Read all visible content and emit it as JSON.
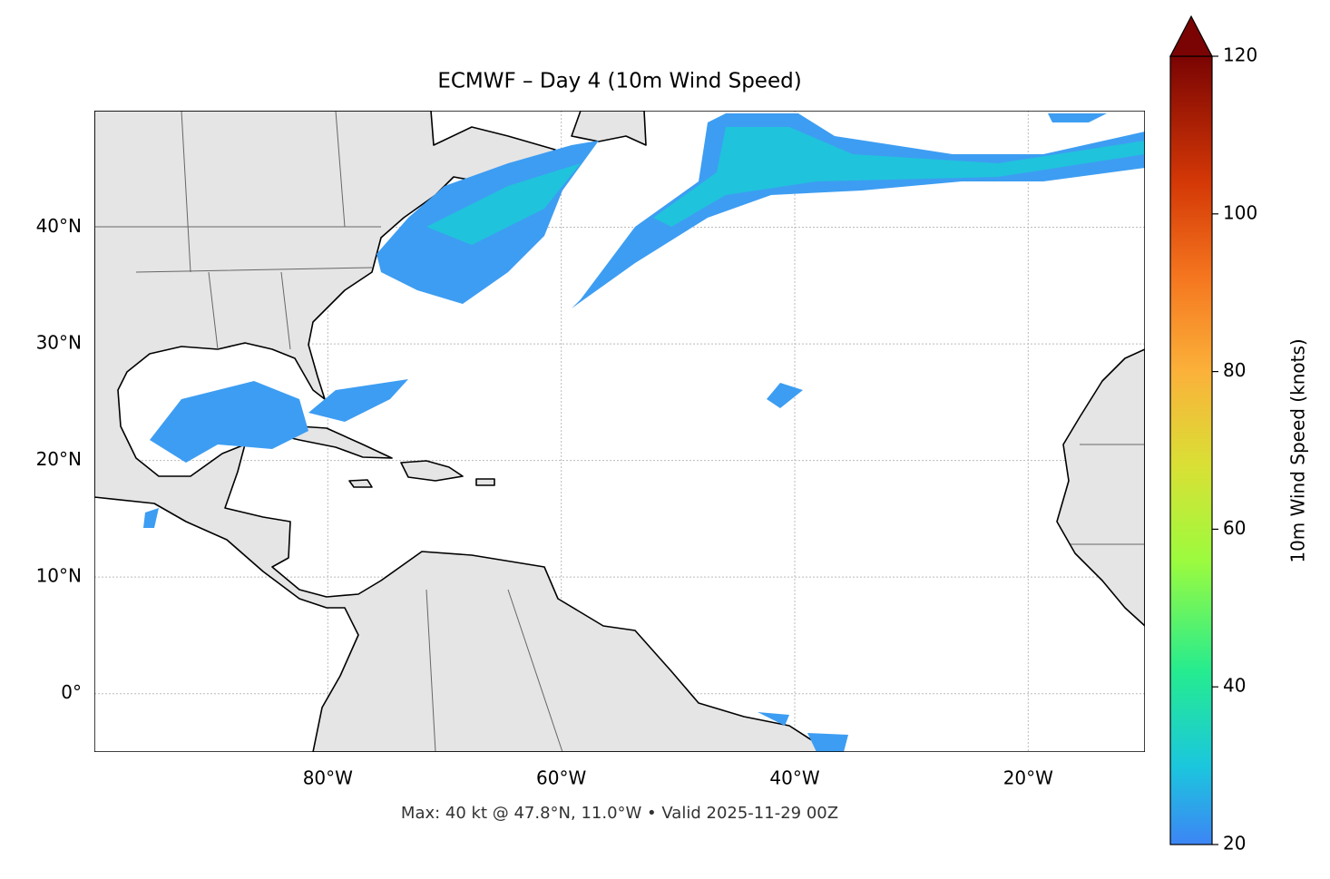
{
  "chart_data": {
    "type": "map",
    "title": "ECMWF – Day 4 (10m Wind Speed)",
    "footer": "Max: 40 kt @ 47.8°N, 11.0°W • Valid 2025-11-29 00Z",
    "xlim": [
      -100,
      -10
    ],
    "ylim": [
      -5,
      50
    ],
    "xticks": [
      {
        "value": -80,
        "label": "80°W"
      },
      {
        "value": -60,
        "label": "60°W"
      },
      {
        "value": -40,
        "label": "40°W"
      },
      {
        "value": -20,
        "label": "20°W"
      }
    ],
    "yticks": [
      {
        "value": 0,
        "label": "0°"
      },
      {
        "value": 10,
        "label": "10°N"
      },
      {
        "value": 20,
        "label": "20°N"
      },
      {
        "value": 30,
        "label": "30°N"
      },
      {
        "value": 40,
        "label": "40°N"
      }
    ],
    "grid": true,
    "colorbar": {
      "label": "10m Wind Speed (knots)",
      "lim": [
        20,
        120
      ],
      "ticks": [
        20,
        40,
        60,
        80,
        100,
        120
      ],
      "extend": "max"
    }
  }
}
